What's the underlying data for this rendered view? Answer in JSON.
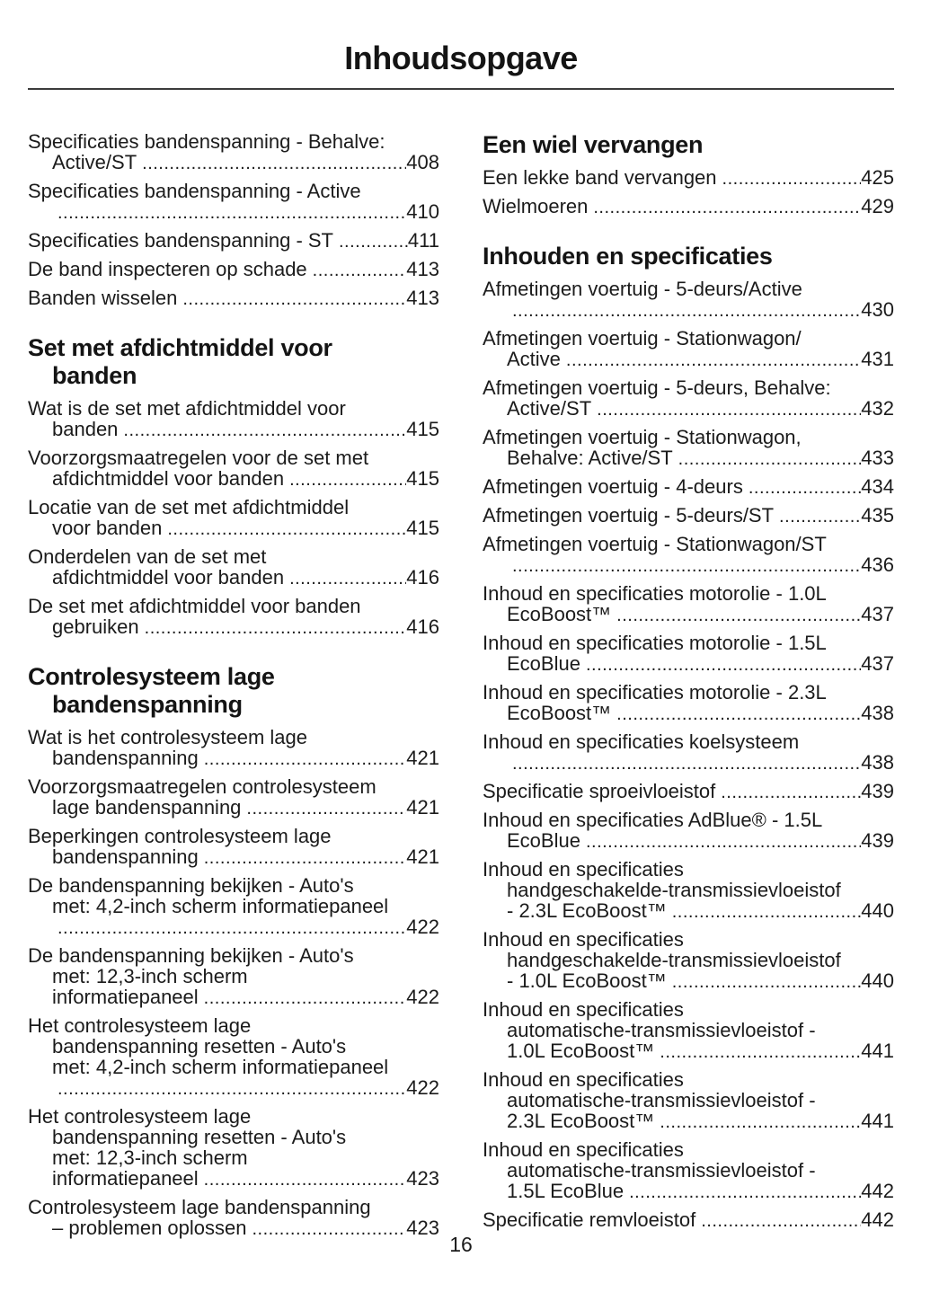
{
  "title": "Inhoudsopgave",
  "page_number": "16",
  "colors": {
    "background": "#ffffff",
    "text": "#1b1b1b",
    "heading": "#141414",
    "rule": "#3c3c3c"
  },
  "columns": [
    {
      "name": "left",
      "blocks": [
        {
          "heading_lines": [],
          "entries": [
            {
              "lines": [
                {
                  "t": "Specificaties bandenspanning - Behalve:"
                },
                {
                  "t": "Active/ST",
                  "page": "408"
                }
              ]
            },
            {
              "lines": [
                {
                  "t": "Specificaties bandenspanning - Active"
                },
                {
                  "t": "",
                  "page": "410"
                }
              ]
            },
            {
              "lines": [
                {
                  "t": "Specificaties bandenspanning - ST",
                  "page": "411"
                }
              ]
            },
            {
              "lines": [
                {
                  "t": "De band inspecteren op schade",
                  "page": "413"
                }
              ]
            },
            {
              "lines": [
                {
                  "t": "Banden wisselen",
                  "page": "413"
                }
              ]
            }
          ]
        },
        {
          "heading_lines": [
            "Set met afdichtmiddel voor",
            "banden"
          ],
          "entries": [
            {
              "lines": [
                {
                  "t": "Wat is de set met afdichtmiddel voor"
                },
                {
                  "t": "banden",
                  "page": "415"
                }
              ]
            },
            {
              "lines": [
                {
                  "t": "Voorzorgsmaatregelen voor de set met"
                },
                {
                  "t": "afdichtmiddel voor banden",
                  "page": "415"
                }
              ]
            },
            {
              "lines": [
                {
                  "t": "Locatie van de set met afdichtmiddel"
                },
                {
                  "t": "voor banden",
                  "page": "415"
                }
              ]
            },
            {
              "lines": [
                {
                  "t": "Onderdelen van de set met"
                },
                {
                  "t": "afdichtmiddel voor banden",
                  "page": "416"
                }
              ]
            },
            {
              "lines": [
                {
                  "t": "De set met afdichtmiddel voor banden"
                },
                {
                  "t": "gebruiken",
                  "page": "416"
                }
              ]
            }
          ]
        },
        {
          "heading_lines": [
            "Controlesysteem lage",
            "bandenspanning"
          ],
          "entries": [
            {
              "lines": [
                {
                  "t": "Wat is het controlesysteem lage"
                },
                {
                  "t": "bandenspanning",
                  "page": "421"
                }
              ]
            },
            {
              "lines": [
                {
                  "t": "Voorzorgsmaatregelen controlesysteem"
                },
                {
                  "t": "lage bandenspanning",
                  "page": "421"
                }
              ]
            },
            {
              "lines": [
                {
                  "t": "Beperkingen controlesysteem lage"
                },
                {
                  "t": "bandenspanning",
                  "page": "421"
                }
              ]
            },
            {
              "lines": [
                {
                  "t": "De bandenspanning bekijken - Auto's"
                },
                {
                  "t": "met: 4,2-inch scherm informatiepaneel"
                },
                {
                  "t": "",
                  "page": "422"
                }
              ]
            },
            {
              "lines": [
                {
                  "t": "De bandenspanning bekijken - Auto's"
                },
                {
                  "t": "met: 12,3-inch scherm"
                },
                {
                  "t": "informatiepaneel",
                  "page": "422"
                }
              ]
            },
            {
              "lines": [
                {
                  "t": "Het controlesysteem lage"
                },
                {
                  "t": "bandenspanning resetten - Auto's"
                },
                {
                  "t": "met: 4,2-inch scherm informatiepaneel"
                },
                {
                  "t": "",
                  "page": "422"
                }
              ]
            },
            {
              "lines": [
                {
                  "t": "Het controlesysteem lage"
                },
                {
                  "t": "bandenspanning resetten - Auto's"
                },
                {
                  "t": "met: 12,3-inch scherm"
                },
                {
                  "t": "informatiepaneel",
                  "page": "423"
                }
              ]
            },
            {
              "lines": [
                {
                  "t": "Controlesysteem lage bandenspanning"
                },
                {
                  "t": "– problemen oplossen",
                  "page": "423"
                }
              ]
            }
          ]
        }
      ]
    },
    {
      "name": "right",
      "blocks": [
        {
          "heading_lines": [
            "Een wiel vervangen"
          ],
          "entries": [
            {
              "lines": [
                {
                  "t": "Een lekke band vervangen",
                  "page": "425"
                }
              ]
            },
            {
              "lines": [
                {
                  "t": "Wielmoeren",
                  "page": "429"
                }
              ]
            }
          ]
        },
        {
          "heading_lines": [
            "Inhouden en specificaties"
          ],
          "entries": [
            {
              "lines": [
                {
                  "t": "Afmetingen voertuig - 5-deurs/Active"
                },
                {
                  "t": "",
                  "page": "430"
                }
              ]
            },
            {
              "lines": [
                {
                  "t": "Afmetingen voertuig - Stationwagon/"
                },
                {
                  "t": "Active",
                  "page": "431"
                }
              ]
            },
            {
              "lines": [
                {
                  "t": "Afmetingen voertuig - 5-deurs, Behalve:"
                },
                {
                  "t": "Active/ST",
                  "page": "432"
                }
              ]
            },
            {
              "lines": [
                {
                  "t": "Afmetingen voertuig - Stationwagon,"
                },
                {
                  "t": "Behalve: Active/ST",
                  "page": "433"
                }
              ]
            },
            {
              "lines": [
                {
                  "t": "Afmetingen voertuig - 4-deurs",
                  "page": "434"
                }
              ]
            },
            {
              "lines": [
                {
                  "t": "Afmetingen voertuig - 5-deurs/ST",
                  "page": "435"
                }
              ]
            },
            {
              "lines": [
                {
                  "t": "Afmetingen voertuig - Stationwagon/ST"
                },
                {
                  "t": "",
                  "page": "436"
                }
              ]
            },
            {
              "lines": [
                {
                  "t": "Inhoud en specificaties motorolie - 1.0L"
                },
                {
                  "t": "EcoBoost™",
                  "page": "437"
                }
              ]
            },
            {
              "lines": [
                {
                  "t": "Inhoud en specificaties motorolie - 1.5L"
                },
                {
                  "t": "EcoBlue",
                  "page": "437"
                }
              ]
            },
            {
              "lines": [
                {
                  "t": "Inhoud en specificaties motorolie - 2.3L"
                },
                {
                  "t": "EcoBoost™",
                  "page": "438"
                }
              ]
            },
            {
              "lines": [
                {
                  "t": "Inhoud en specificaties koelsysteem"
                },
                {
                  "t": "",
                  "page": "438"
                }
              ]
            },
            {
              "lines": [
                {
                  "t": "Specificatie sproeivloeistof",
                  "page": "439"
                }
              ]
            },
            {
              "lines": [
                {
                  "t": "Inhoud en specificaties AdBlue® - 1.5L"
                },
                {
                  "t": "EcoBlue",
                  "page": "439"
                }
              ]
            },
            {
              "lines": [
                {
                  "t": "Inhoud en specificaties"
                },
                {
                  "t": "handgeschakelde-transmissievloeistof"
                },
                {
                  "t": "- 2.3L EcoBoost™",
                  "page": "440"
                }
              ]
            },
            {
              "lines": [
                {
                  "t": "Inhoud en specificaties"
                },
                {
                  "t": "handgeschakelde-transmissievloeistof"
                },
                {
                  "t": "- 1.0L EcoBoost™",
                  "page": "440"
                }
              ]
            },
            {
              "lines": [
                {
                  "t": "Inhoud en specificaties"
                },
                {
                  "t": "automatische-transmissievloeistof -"
                },
                {
                  "t": "1.0L EcoBoost™",
                  "page": "441"
                }
              ]
            },
            {
              "lines": [
                {
                  "t": "Inhoud en specificaties"
                },
                {
                  "t": "automatische-transmissievloeistof -"
                },
                {
                  "t": "2.3L EcoBoost™",
                  "page": "441"
                }
              ]
            },
            {
              "lines": [
                {
                  "t": "Inhoud en specificaties"
                },
                {
                  "t": "automatische-transmissievloeistof -"
                },
                {
                  "t": "1.5L EcoBlue",
                  "page": "442"
                }
              ]
            },
            {
              "lines": [
                {
                  "t": "Specificatie remvloeistof",
                  "page": "442"
                }
              ]
            }
          ]
        }
      ]
    }
  ]
}
